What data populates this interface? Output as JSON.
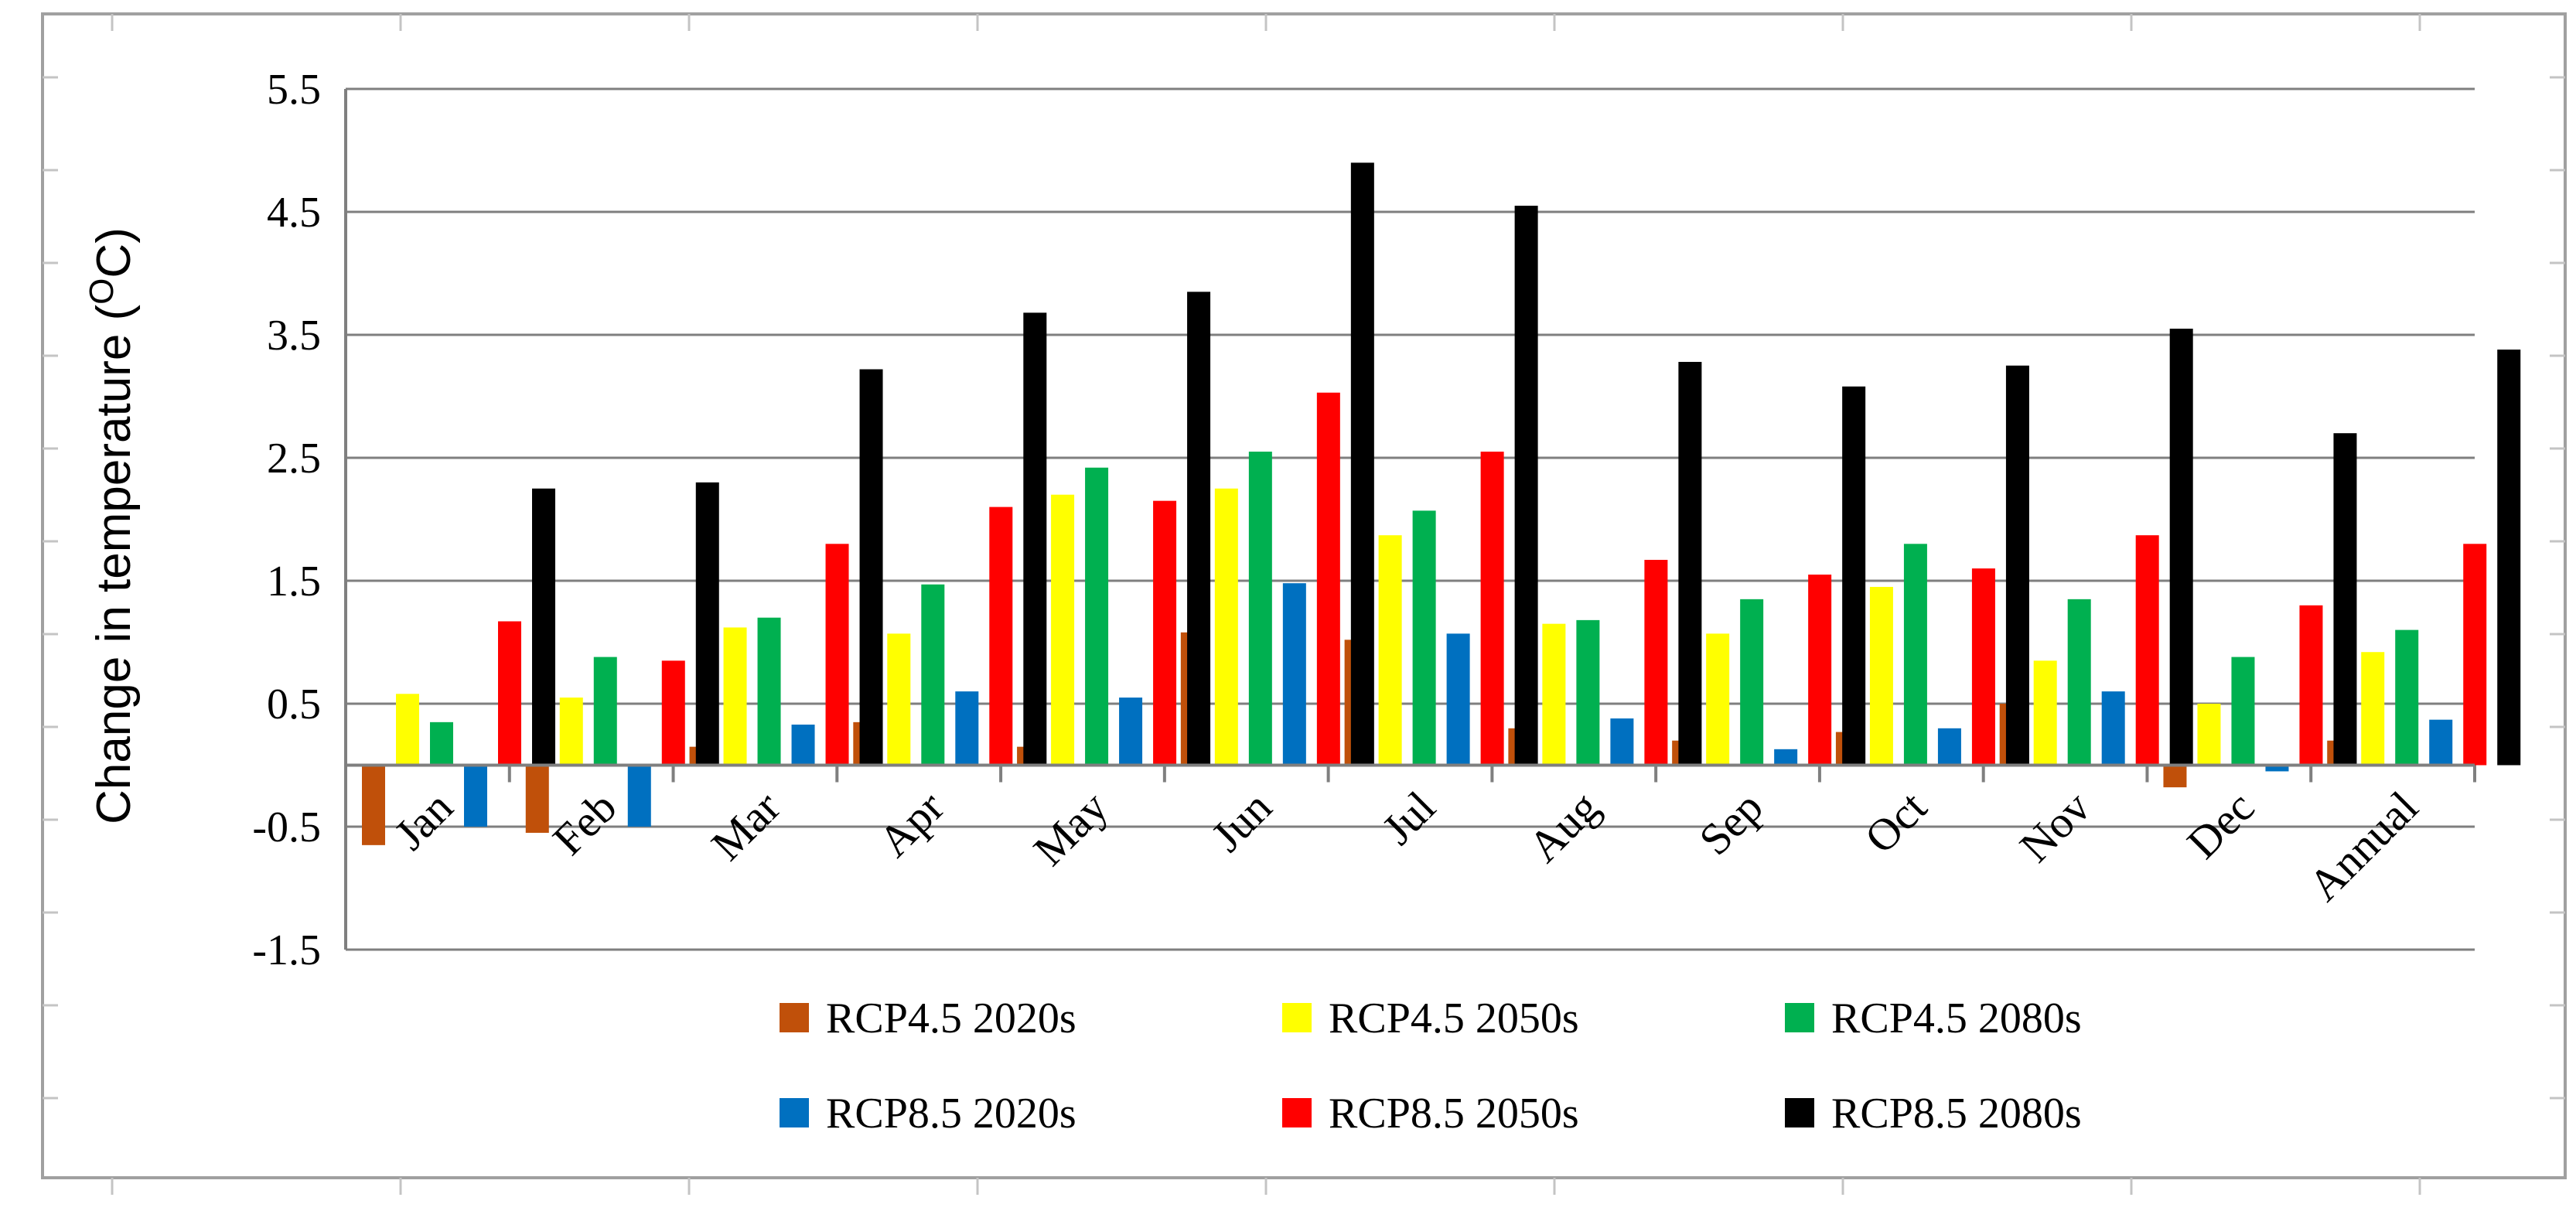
{
  "chart_data": {
    "type": "bar",
    "ylabel": "Change in temperature (",
    "ylabel_sup": "O",
    "ylabel_unit": "C)",
    "xlabel": "",
    "ylim": [
      -1.5,
      5.5
    ],
    "yticks": [
      "5.5",
      "4.5",
      "3.5",
      "2.5",
      "1.5",
      "0.5",
      "-0.5",
      "-1.5"
    ],
    "ytick_values": [
      5.5,
      4.5,
      3.5,
      2.5,
      1.5,
      0.5,
      -0.5,
      -1.5
    ],
    "grid": "horizontal",
    "legend_position": "bottom",
    "categories": [
      "Jan",
      "Feb",
      "Mar",
      "Apr",
      "May",
      "Jun",
      "Jul",
      "Aug",
      "Sep",
      "Oct",
      "Nov",
      "Dec",
      "Annual"
    ],
    "series": [
      {
        "name": "RCP4.5 2020s",
        "color": "#C0500A",
        "values": [
          -0.65,
          -0.55,
          0.15,
          0.35,
          0.15,
          1.08,
          1.02,
          0.3,
          0.2,
          0.27,
          0.5,
          -0.18,
          0.2
        ]
      },
      {
        "name": "RCP4.5 2050s",
        "color": "#FFFF00",
        "values": [
          0.58,
          0.55,
          1.12,
          1.07,
          2.2,
          2.25,
          1.87,
          1.15,
          1.07,
          1.45,
          0.85,
          0.5,
          0.92
        ]
      },
      {
        "name": "RCP4.5 2080s",
        "color": "#00B050",
        "values": [
          0.35,
          0.88,
          1.2,
          1.47,
          2.42,
          2.55,
          2.07,
          1.18,
          1.35,
          1.8,
          1.35,
          0.88,
          1.1
        ]
      },
      {
        "name": "RCP8.5 2020s",
        "color": "#0070C0",
        "values": [
          -0.5,
          -0.5,
          0.33,
          0.6,
          0.55,
          1.48,
          1.07,
          0.38,
          0.13,
          0.3,
          0.6,
          -0.05,
          0.37
        ]
      },
      {
        "name": "RCP8.5 2050s",
        "color": "#FF0000",
        "values": [
          1.17,
          0.85,
          1.8,
          2.1,
          2.15,
          3.03,
          2.55,
          1.67,
          1.55,
          1.6,
          1.87,
          1.3,
          1.8
        ]
      },
      {
        "name": "RCP8.5 2080s",
        "color": "#000000",
        "values": [
          2.25,
          2.3,
          3.22,
          3.68,
          3.85,
          4.9,
          4.55,
          3.28,
          3.08,
          3.25,
          3.55,
          2.7,
          3.38
        ]
      }
    ]
  }
}
